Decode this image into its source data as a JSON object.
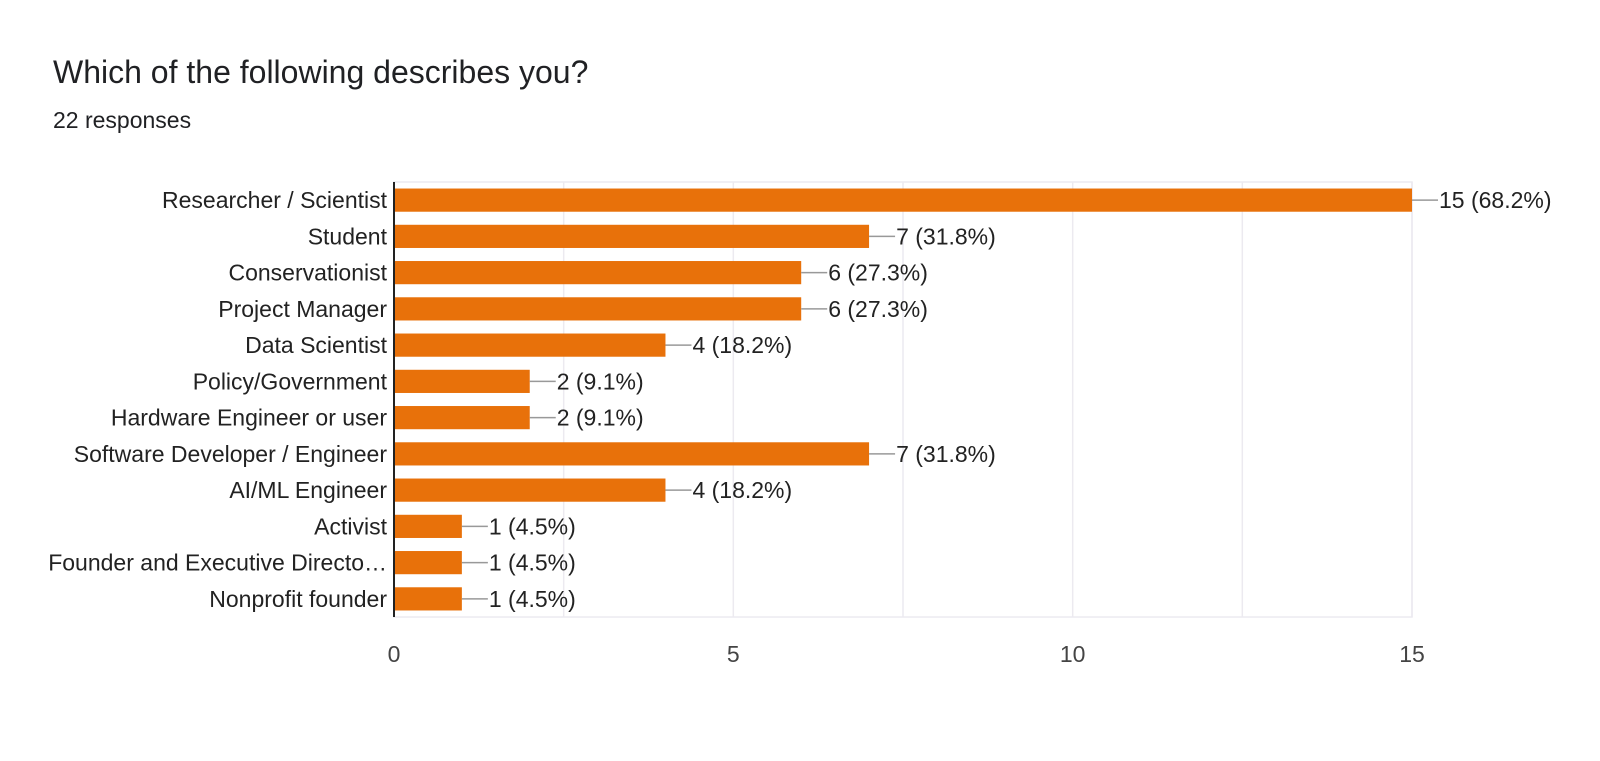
{
  "header": {
    "question": "Which of the following describes you?",
    "responses": "22 responses"
  },
  "colors": {
    "bar": "#E8710A",
    "grid": "#ECEAF0",
    "axis": "#222222",
    "leader": "#999999"
  },
  "chart_data": {
    "type": "bar",
    "orientation": "horizontal",
    "categories": [
      "Researcher / Scientist",
      "Student",
      "Conservationist",
      "Project Manager",
      "Data Scientist",
      "Policy/Government",
      "Hardware Engineer or user",
      "Software Developer / Engineer",
      "AI/ML Engineer",
      "Activist",
      "Founder and Executive Directo…",
      "Nonprofit founder"
    ],
    "values": [
      15,
      7,
      6,
      6,
      4,
      2,
      2,
      7,
      4,
      1,
      1,
      1
    ],
    "data_labels": [
      "15 (68.2%)",
      "7 (31.8%)",
      "6 (27.3%)",
      "6 (27.3%)",
      "4 (18.2%)",
      "2 (9.1%)",
      "2 (9.1%)",
      "7 (31.8%)",
      "4 (18.2%)",
      "1 (4.5%)",
      "1 (4.5%)",
      "1 (4.5%)"
    ],
    "xlim": [
      0,
      15
    ],
    "xticks": [
      0,
      5,
      10,
      15
    ],
    "xtick_labels": [
      "0",
      "5",
      "10",
      "15"
    ],
    "grid": true
  }
}
